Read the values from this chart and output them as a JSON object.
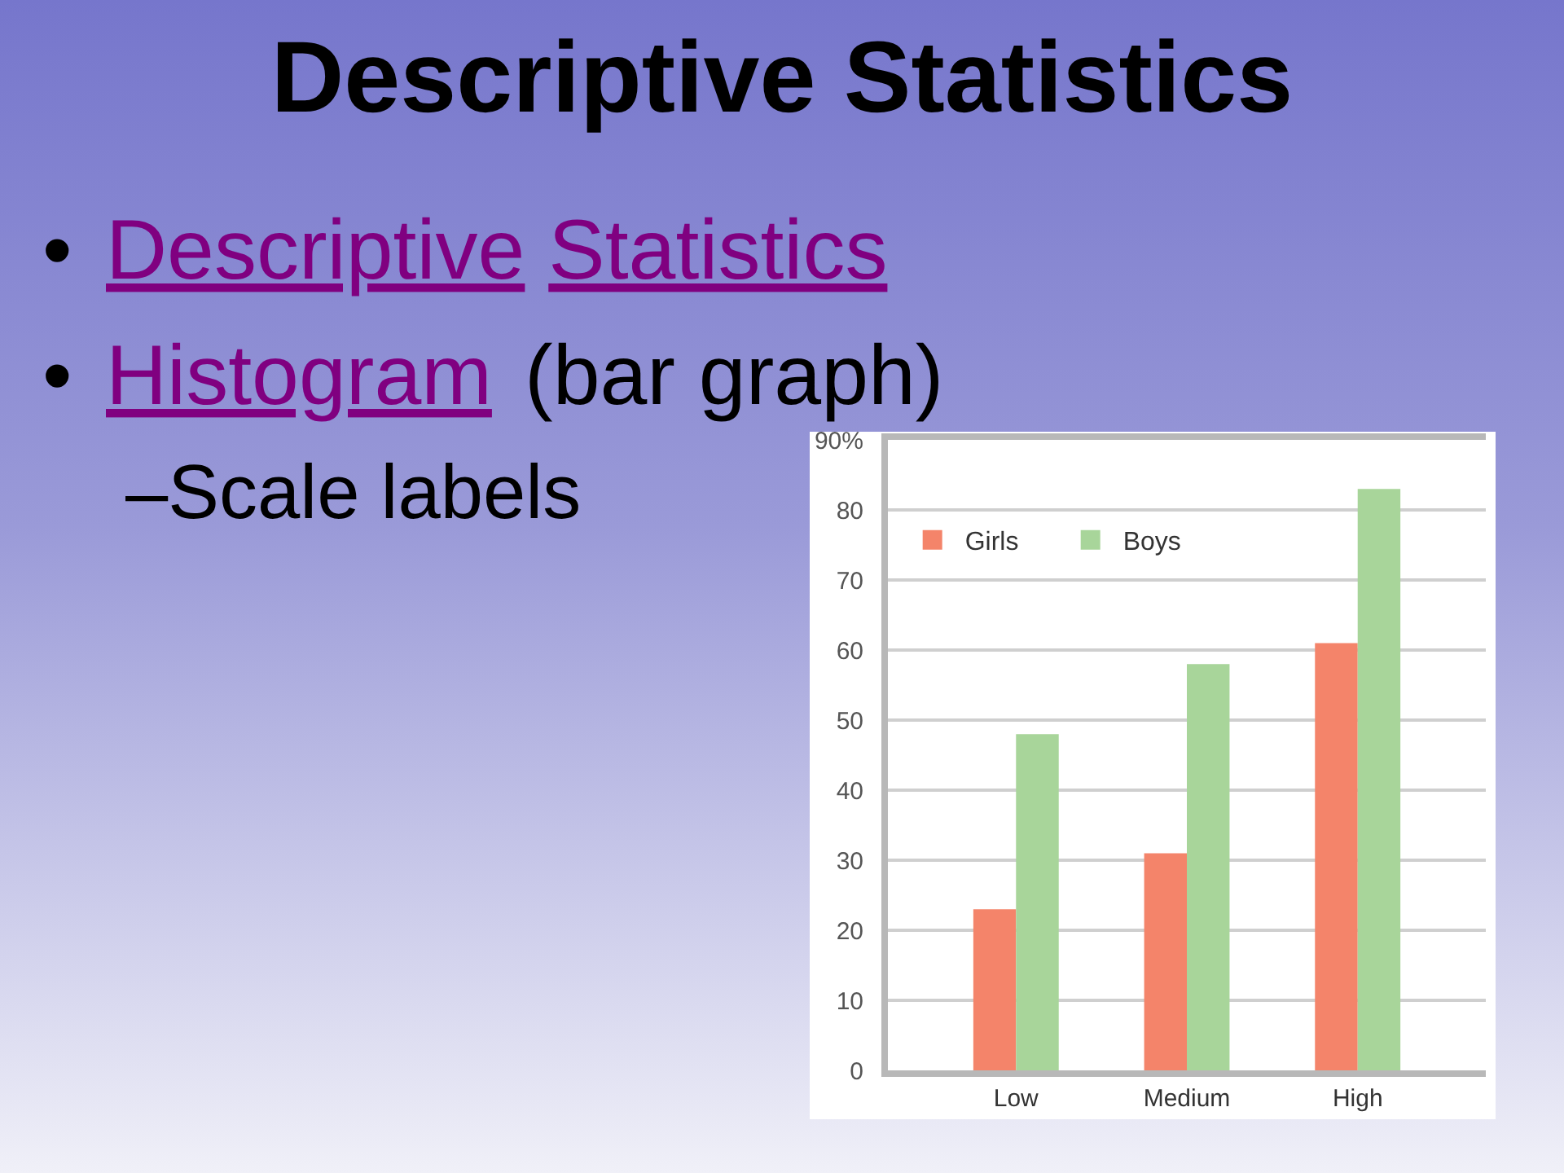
{
  "chart_data": {
    "type": "bar",
    "title": "Descriptive Statistics",
    "annotations": [
      "•",
      "Descriptive Statistics",
      "•",
      "Histogram",
      "(bar graph)",
      "–Scale labels"
    ],
    "categories": [
      "Low",
      "Medium",
      "High"
    ],
    "series": [
      {
        "name": "Girls",
        "color": "#f4846a",
        "values": [
          23,
          31,
          61
        ]
      },
      {
        "name": "Boys",
        "color": "#a8d59a",
        "values": [
          48,
          58,
          83
        ]
      }
    ],
    "ylim": [
      0,
      90
    ],
    "yticks": [
      0,
      10,
      20,
      30,
      40,
      50,
      60,
      70,
      80,
      {
        "value": 90,
        "label": "90%"
      }
    ],
    "grid": "y",
    "legend": "top left"
  }
}
